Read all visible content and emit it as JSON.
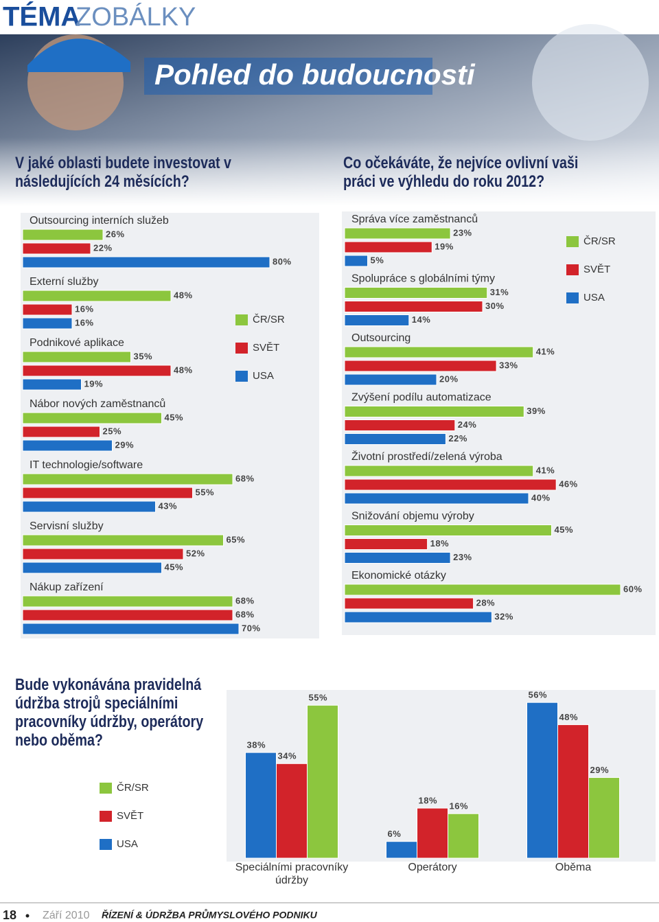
{
  "header": {
    "section": "TÉMA",
    "section_light": "ZOBÁLKY",
    "banner_title": "Pohled do budoucnosti"
  },
  "chart_data": [
    {
      "type": "barh",
      "title": "V jaké oblasti budete investovat v následujících 24 měsících?",
      "categories": [
        "Outsourcing interních služeb",
        "Externí služby",
        "Podnikové aplikace",
        "Nábor nových zaměstnanců",
        "IT technologie/software",
        "Servisní služby",
        "Nákup zařízení"
      ],
      "series": [
        {
          "name": "ČR/SR",
          "color": "#8cc63e",
          "values": [
            26,
            48,
            35,
            45,
            68,
            65,
            68
          ],
          "value_labels": [
            "26%",
            "48%",
            "35%",
            "45%",
            "68%",
            "65%",
            "68%"
          ]
        },
        {
          "name": "SVĚT",
          "color": "#d2232a",
          "values": [
            22,
            16,
            48,
            25,
            55,
            52,
            68
          ],
          "value_labels": [
            "22%",
            "16%",
            "48%",
            "25%",
            "55%",
            "52%",
            "68%"
          ]
        },
        {
          "name": "USA",
          "color": "#1f6fc5",
          "values": [
            80,
            16,
            19,
            29,
            43,
            45,
            70
          ],
          "value_labels": [
            "80%",
            "16%",
            "19%",
            "29%",
            "43%",
            "45%",
            "70%"
          ]
        }
      ]
    },
    {
      "type": "barh",
      "title": "Co očekáváte, že nejvíce ovlivní vaši práci ve výhledu do roku 2012?",
      "categories": [
        "Správa více zaměstnanců",
        "Spolupráce s globálními týmy",
        "Outsourcing",
        "Zvýšení podílu automatizace",
        "Životní prostředí/zelená výroba",
        "Snižování objemu výroby",
        "Ekonomické otázky"
      ],
      "series": [
        {
          "name": "ČR/SR",
          "color": "#8cc63e",
          "values": [
            23,
            31,
            41,
            39,
            41,
            45,
            60
          ],
          "value_labels": [
            "23%",
            "31%",
            "41%",
            "39%",
            "41%",
            "45%",
            "60%"
          ]
        },
        {
          "name": "SVĚT",
          "color": "#d2232a",
          "values": [
            19,
            30,
            33,
            24,
            46,
            18,
            28
          ],
          "value_labels": [
            "19%",
            "30%",
            "33%",
            "24%",
            "46%",
            "18%",
            "28%"
          ]
        },
        {
          "name": "USA",
          "color": "#1f6fc5",
          "values": [
            5,
            14,
            20,
            22,
            40,
            23,
            32
          ],
          "value_labels": [
            "5%",
            "14%",
            "20%",
            "22%",
            "40%",
            "23%",
            "32%"
          ]
        }
      ]
    },
    {
      "type": "bar",
      "title": "Bude vykonávána pravidelná údržba strojů speciálními pracovníky údržby, operátory nebo oběma?",
      "categories": [
        "Speciálními pracovníky údržby",
        "Operátory",
        "Oběma"
      ],
      "series": [
        {
          "name": "ČR/SR",
          "color": "#8cc63e",
          "values": [
            55,
            16,
            29
          ],
          "value_labels": [
            "55%",
            "16%",
            "29%"
          ]
        },
        {
          "name": "SVĚT",
          "color": "#d2232a",
          "values": [
            34,
            18,
            48
          ],
          "value_labels": [
            "34%",
            "18%",
            "48%"
          ]
        },
        {
          "name": "USA",
          "color": "#1f6fc5",
          "values": [
            38,
            6,
            56
          ],
          "value_labels": [
            "38%",
            "6%",
            "56%"
          ]
        }
      ]
    }
  ],
  "footer": {
    "page": "18",
    "date": "Září 2010",
    "magazine": "ŘÍZENÍ & ÚDRŽBA PRŮMYSLOVÉHO PODNIKU"
  }
}
